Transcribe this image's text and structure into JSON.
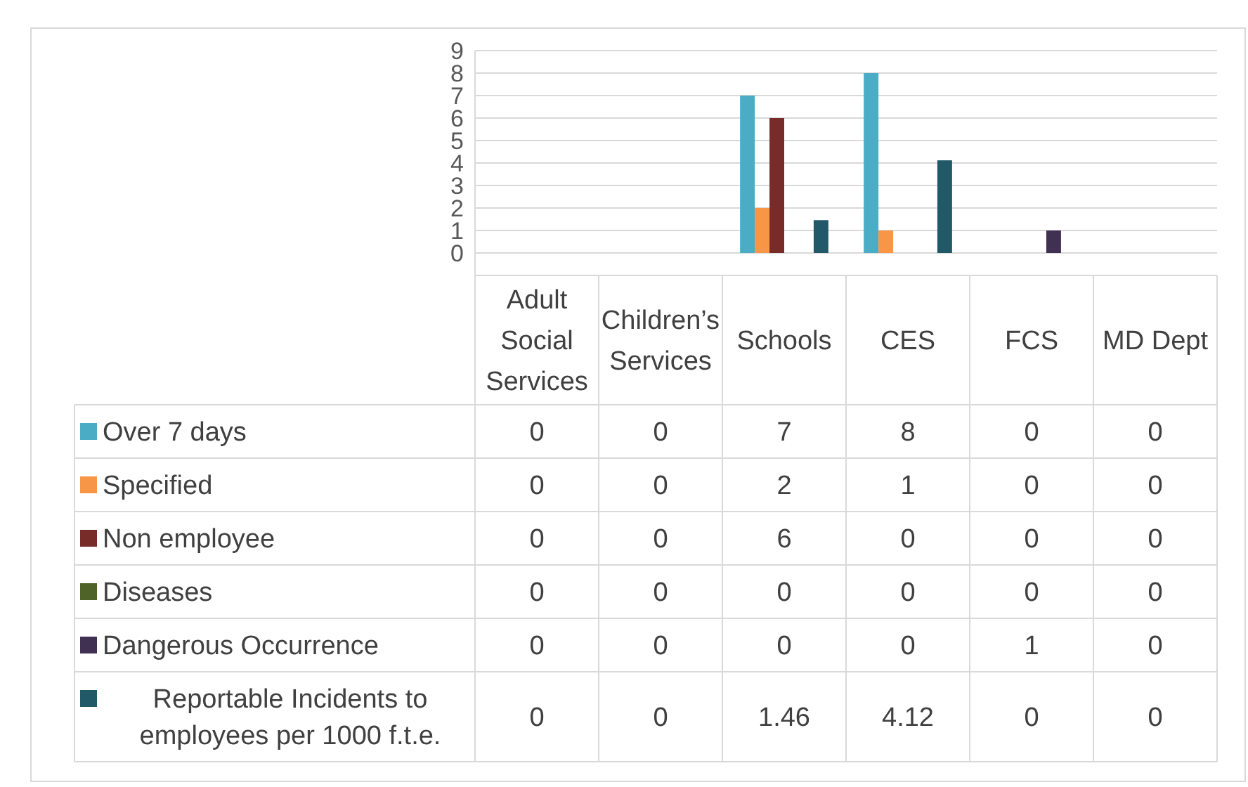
{
  "chart_data": {
    "type": "bar",
    "categories": [
      "Adult Social Services",
      "Children’s Services",
      "Schools",
      "CES",
      "FCS",
      "MD Dept"
    ],
    "series": [
      {
        "name": "Over 7 days",
        "color": "#4bacc6",
        "values": [
          0,
          0,
          7,
          8,
          0,
          0
        ]
      },
      {
        "name": "Specified",
        "color": "#f79646",
        "values": [
          0,
          0,
          2,
          1,
          0,
          0
        ]
      },
      {
        "name": "Non employee",
        "color": "#772c2a",
        "values": [
          0,
          0,
          6,
          0,
          0,
          0
        ]
      },
      {
        "name": "Diseases",
        "color": "#4f6228",
        "values": [
          0,
          0,
          0,
          0,
          0,
          0
        ]
      },
      {
        "name": "Dangerous Occurrence",
        "color": "#403152",
        "values": [
          0,
          0,
          0,
          0,
          1,
          0
        ]
      },
      {
        "name": "Reportable Incidents to employees per 1000 f.t.e.",
        "color": "#215968",
        "values": [
          0,
          0,
          1.46,
          4.12,
          0,
          0
        ]
      }
    ],
    "ylim": [
      0,
      9
    ],
    "yticks": [
      0,
      1,
      2,
      3,
      4,
      5,
      6,
      7,
      8,
      9
    ],
    "grid": "y",
    "legend": "left",
    "data_labels": true
  }
}
